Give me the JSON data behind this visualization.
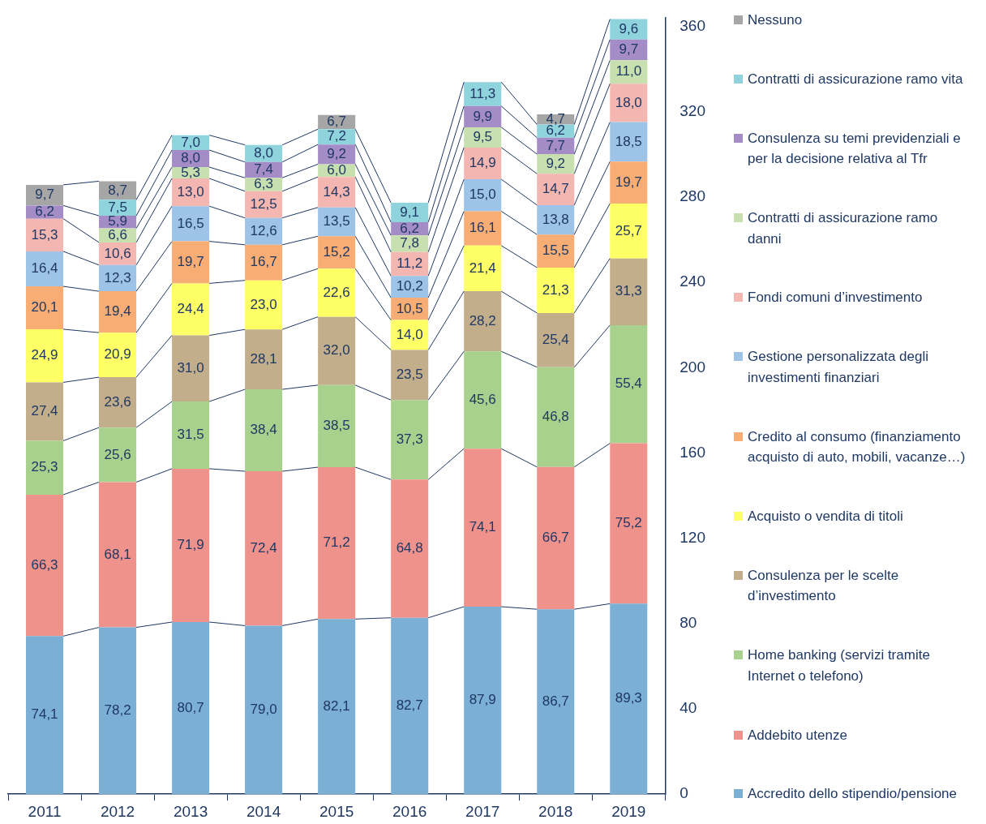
{
  "chart_data": {
    "type": "bar",
    "stacked": true,
    "categories": [
      "2011",
      "2012",
      "2013",
      "2014",
      "2015",
      "2016",
      "2017",
      "2018",
      "2019"
    ],
    "series": [
      {
        "name": "Accredito dello stipendio/pensione",
        "color": "#7bafd4",
        "values": [
          74.1,
          78.2,
          80.7,
          79.0,
          82.1,
          82.7,
          87.9,
          86.7,
          89.3
        ],
        "value_labels": [
          "74,1",
          "78,2",
          "80,7",
          "79,0",
          "82,1",
          "82,7",
          "87,9",
          "86,7",
          "89,3"
        ]
      },
      {
        "name": "Addebito utenze",
        "color": "#f0928c",
        "values": [
          66.3,
          68.1,
          71.9,
          72.4,
          71.2,
          64.8,
          74.1,
          66.7,
          75.2
        ],
        "value_labels": [
          "66,3",
          "68,1",
          "71,9",
          "72,4",
          "71,2",
          "64,8",
          "74,1",
          "66,7",
          "75,2"
        ]
      },
      {
        "name": "Home banking (servizi tramite Internet o telefono)",
        "color": "#a9d18e",
        "values": [
          25.3,
          25.6,
          31.5,
          38.4,
          38.5,
          37.3,
          45.6,
          46.8,
          55.4
        ],
        "value_labels": [
          "25,3",
          "25,6",
          "31,5",
          "38,4",
          "38,5",
          "37,3",
          "45,6",
          "46,8",
          "55,4"
        ]
      },
      {
        "name": "Consulenza per le scelte d’investimento",
        "color": "#c2ae8a",
        "values": [
          27.4,
          23.6,
          31.0,
          28.1,
          32.0,
          23.5,
          28.2,
          25.4,
          31.3
        ],
        "value_labels": [
          "27,4",
          "23,6",
          "31,0",
          "28,1",
          "32,0",
          "23,5",
          "28,2",
          "25,4",
          "31,3"
        ]
      },
      {
        "name": "Acquisto o vendita di titoli",
        "color": "#ffff66",
        "values": [
          24.9,
          20.9,
          24.4,
          23.0,
          22.6,
          14.0,
          21.4,
          21.3,
          25.7
        ],
        "value_labels": [
          "24,9",
          "20,9",
          "24,4",
          "23,0",
          "22,6",
          "14,0",
          "21,4",
          "21,3",
          "25,7"
        ]
      },
      {
        "name": "Credito al consumo (finanziamento acquisto di auto, mobili, vacanze…)",
        "color": "#f8ad74",
        "values": [
          20.1,
          19.4,
          19.7,
          16.7,
          15.2,
          10.5,
          16.1,
          15.5,
          19.7
        ],
        "value_labels": [
          "20,1",
          "19,4",
          "19,7",
          "16,7",
          "15,2",
          "10,5",
          "16,1",
          "15,5",
          "19,7"
        ]
      },
      {
        "name": "Gestione personalizzata degli investimenti finanziari",
        "color": "#9dc3e6",
        "values": [
          16.4,
          12.3,
          16.5,
          12.6,
          13.5,
          10.2,
          15.0,
          13.8,
          18.5
        ],
        "value_labels": [
          "16,4",
          "12,3",
          "16,5",
          "12,6",
          "13,5",
          "10,2",
          "15,0",
          "13,8",
          "18,5"
        ]
      },
      {
        "name": "Fondi comuni d’investimento",
        "color": "#f4b6b0",
        "values": [
          15.3,
          10.6,
          13.0,
          12.5,
          14.3,
          11.2,
          14.9,
          14.7,
          18.0
        ],
        "value_labels": [
          "15,3",
          "10,6",
          "13,0",
          "12,5",
          "14,3",
          "11,2",
          "14,9",
          "14,7",
          "18,0"
        ]
      },
      {
        "name": "Contratti di assicurazione ramo danni",
        "color": "#c8e0b0",
        "values": [
          null,
          6.6,
          5.3,
          6.3,
          6.0,
          7.8,
          9.5,
          9.2,
          11.0
        ],
        "value_labels": [
          null,
          "6,6",
          "5,3",
          "6,3",
          "6,0",
          "7,8",
          "9,5",
          "9,2",
          "11,0"
        ]
      },
      {
        "name": "Consulenza su temi previdenziali e per la decisione relativa al Tfr",
        "color": "#a48cc6",
        "values": [
          6.2,
          5.9,
          8.0,
          7.4,
          9.2,
          6.2,
          9.9,
          7.7,
          9.7
        ],
        "value_labels": [
          "6,2",
          "5,9",
          "8,0",
          "7,4",
          "9,2",
          "6,2",
          "9,9",
          "7,7",
          "9,7"
        ]
      },
      {
        "name": "Contratti di assicurazione ramo vita",
        "color": "#8fd3dd",
        "values": [
          null,
          7.5,
          7.0,
          8.0,
          7.2,
          9.1,
          11.3,
          6.2,
          9.6
        ],
        "value_labels": [
          null,
          "7,5",
          "7,0",
          "8,0",
          "7,2",
          "9,1",
          "11,3",
          "6,2",
          "9,6"
        ]
      },
      {
        "name": "Nessuno",
        "color": "#a6a6a6",
        "values": [
          9.7,
          8.7,
          null,
          null,
          6.7,
          null,
          null,
          4.7,
          null
        ],
        "value_labels": [
          "9,7",
          "8,7",
          null,
          null,
          "6,7",
          null,
          null,
          "4,7",
          null
        ]
      }
    ],
    "ylim": [
      0,
      364
    ],
    "yticks": [
      0,
      40,
      80,
      120,
      160,
      200,
      240,
      280,
      320,
      360
    ],
    "grid": false,
    "legend": "right"
  }
}
